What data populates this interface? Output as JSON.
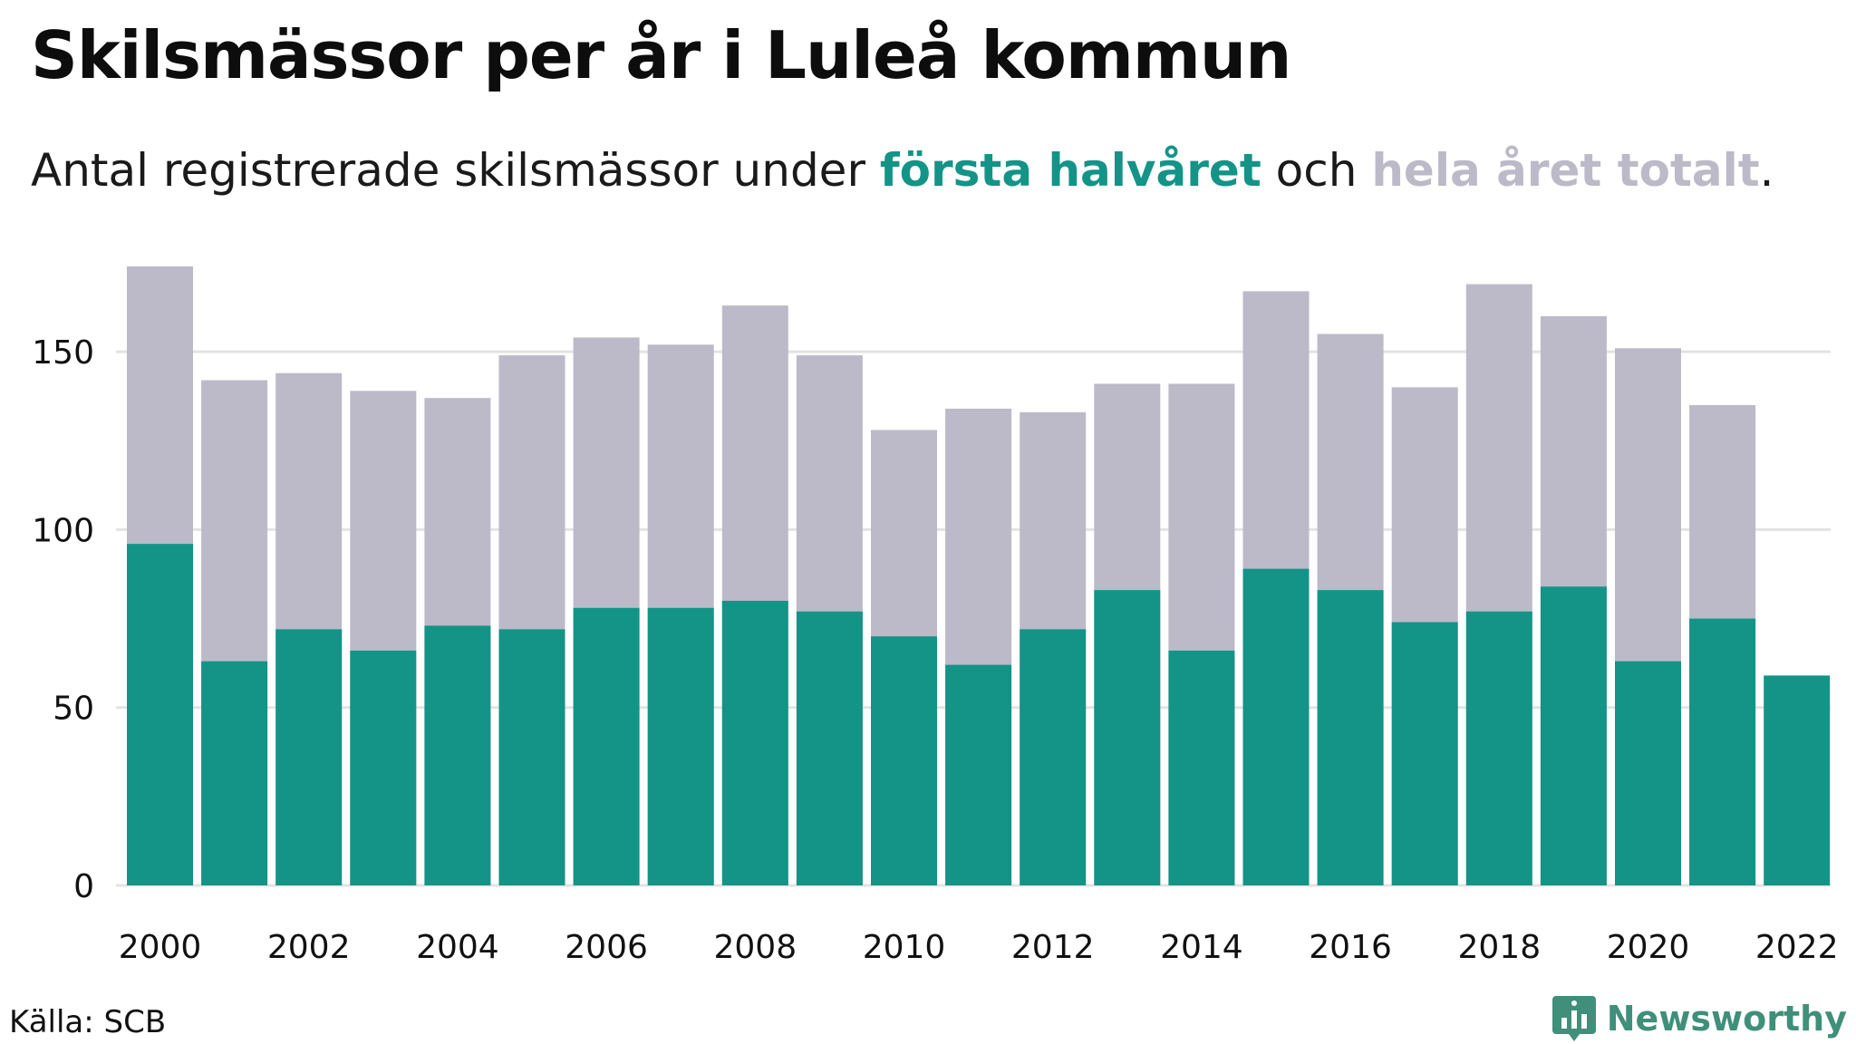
{
  "colors": {
    "first_half": "#139487",
    "total": "#bcbac8",
    "grid": "#e3e3e3",
    "axis_text": "#111111",
    "brand": "#3f8f7a"
  },
  "header": {
    "title": "Skilsmässor per år i Luleå kommun",
    "subtitle_prefix": "Antal registrerade skilsmässor under ",
    "subtitle_first_half": "första halvåret",
    "subtitle_middle": " och ",
    "subtitle_total": "hela året totalt",
    "subtitle_suffix": "."
  },
  "footer": {
    "source": "Källa: SCB",
    "brand": "Newsworthy",
    "brand_icon": "newsworthy-logo-icon"
  },
  "chart_data": {
    "type": "bar",
    "title": "Skilsmässor per år i Luleå kommun",
    "subtitle": "Antal registrerade skilsmässor under första halvåret och hela året totalt.",
    "xlabel": "",
    "ylabel": "",
    "categories": [
      "2000",
      "2001",
      "2002",
      "2003",
      "2004",
      "2005",
      "2006",
      "2007",
      "2008",
      "2009",
      "2010",
      "2011",
      "2012",
      "2013",
      "2014",
      "2015",
      "2016",
      "2017",
      "2018",
      "2019",
      "2020",
      "2021",
      "2022"
    ],
    "x_tick_labels": [
      "2000",
      "2002",
      "2004",
      "2006",
      "2008",
      "2010",
      "2012",
      "2014",
      "2016",
      "2018",
      "2020",
      "2022"
    ],
    "y_ticks": [
      0,
      50,
      100,
      150
    ],
    "ylim": [
      0,
      175
    ],
    "grid": true,
    "overlay": true,
    "series": [
      {
        "key": "total",
        "values": [
          174,
          142,
          144,
          139,
          137,
          149,
          154,
          152,
          163,
          149,
          128,
          134,
          133,
          141,
          141,
          167,
          155,
          140,
          169,
          160,
          151,
          135,
          null
        ]
      },
      {
        "key": "first_half",
        "values": [
          96,
          63,
          72,
          66,
          73,
          72,
          78,
          78,
          80,
          77,
          70,
          62,
          72,
          83,
          66,
          89,
          83,
          74,
          77,
          84,
          63,
          75,
          59
        ]
      }
    ]
  }
}
